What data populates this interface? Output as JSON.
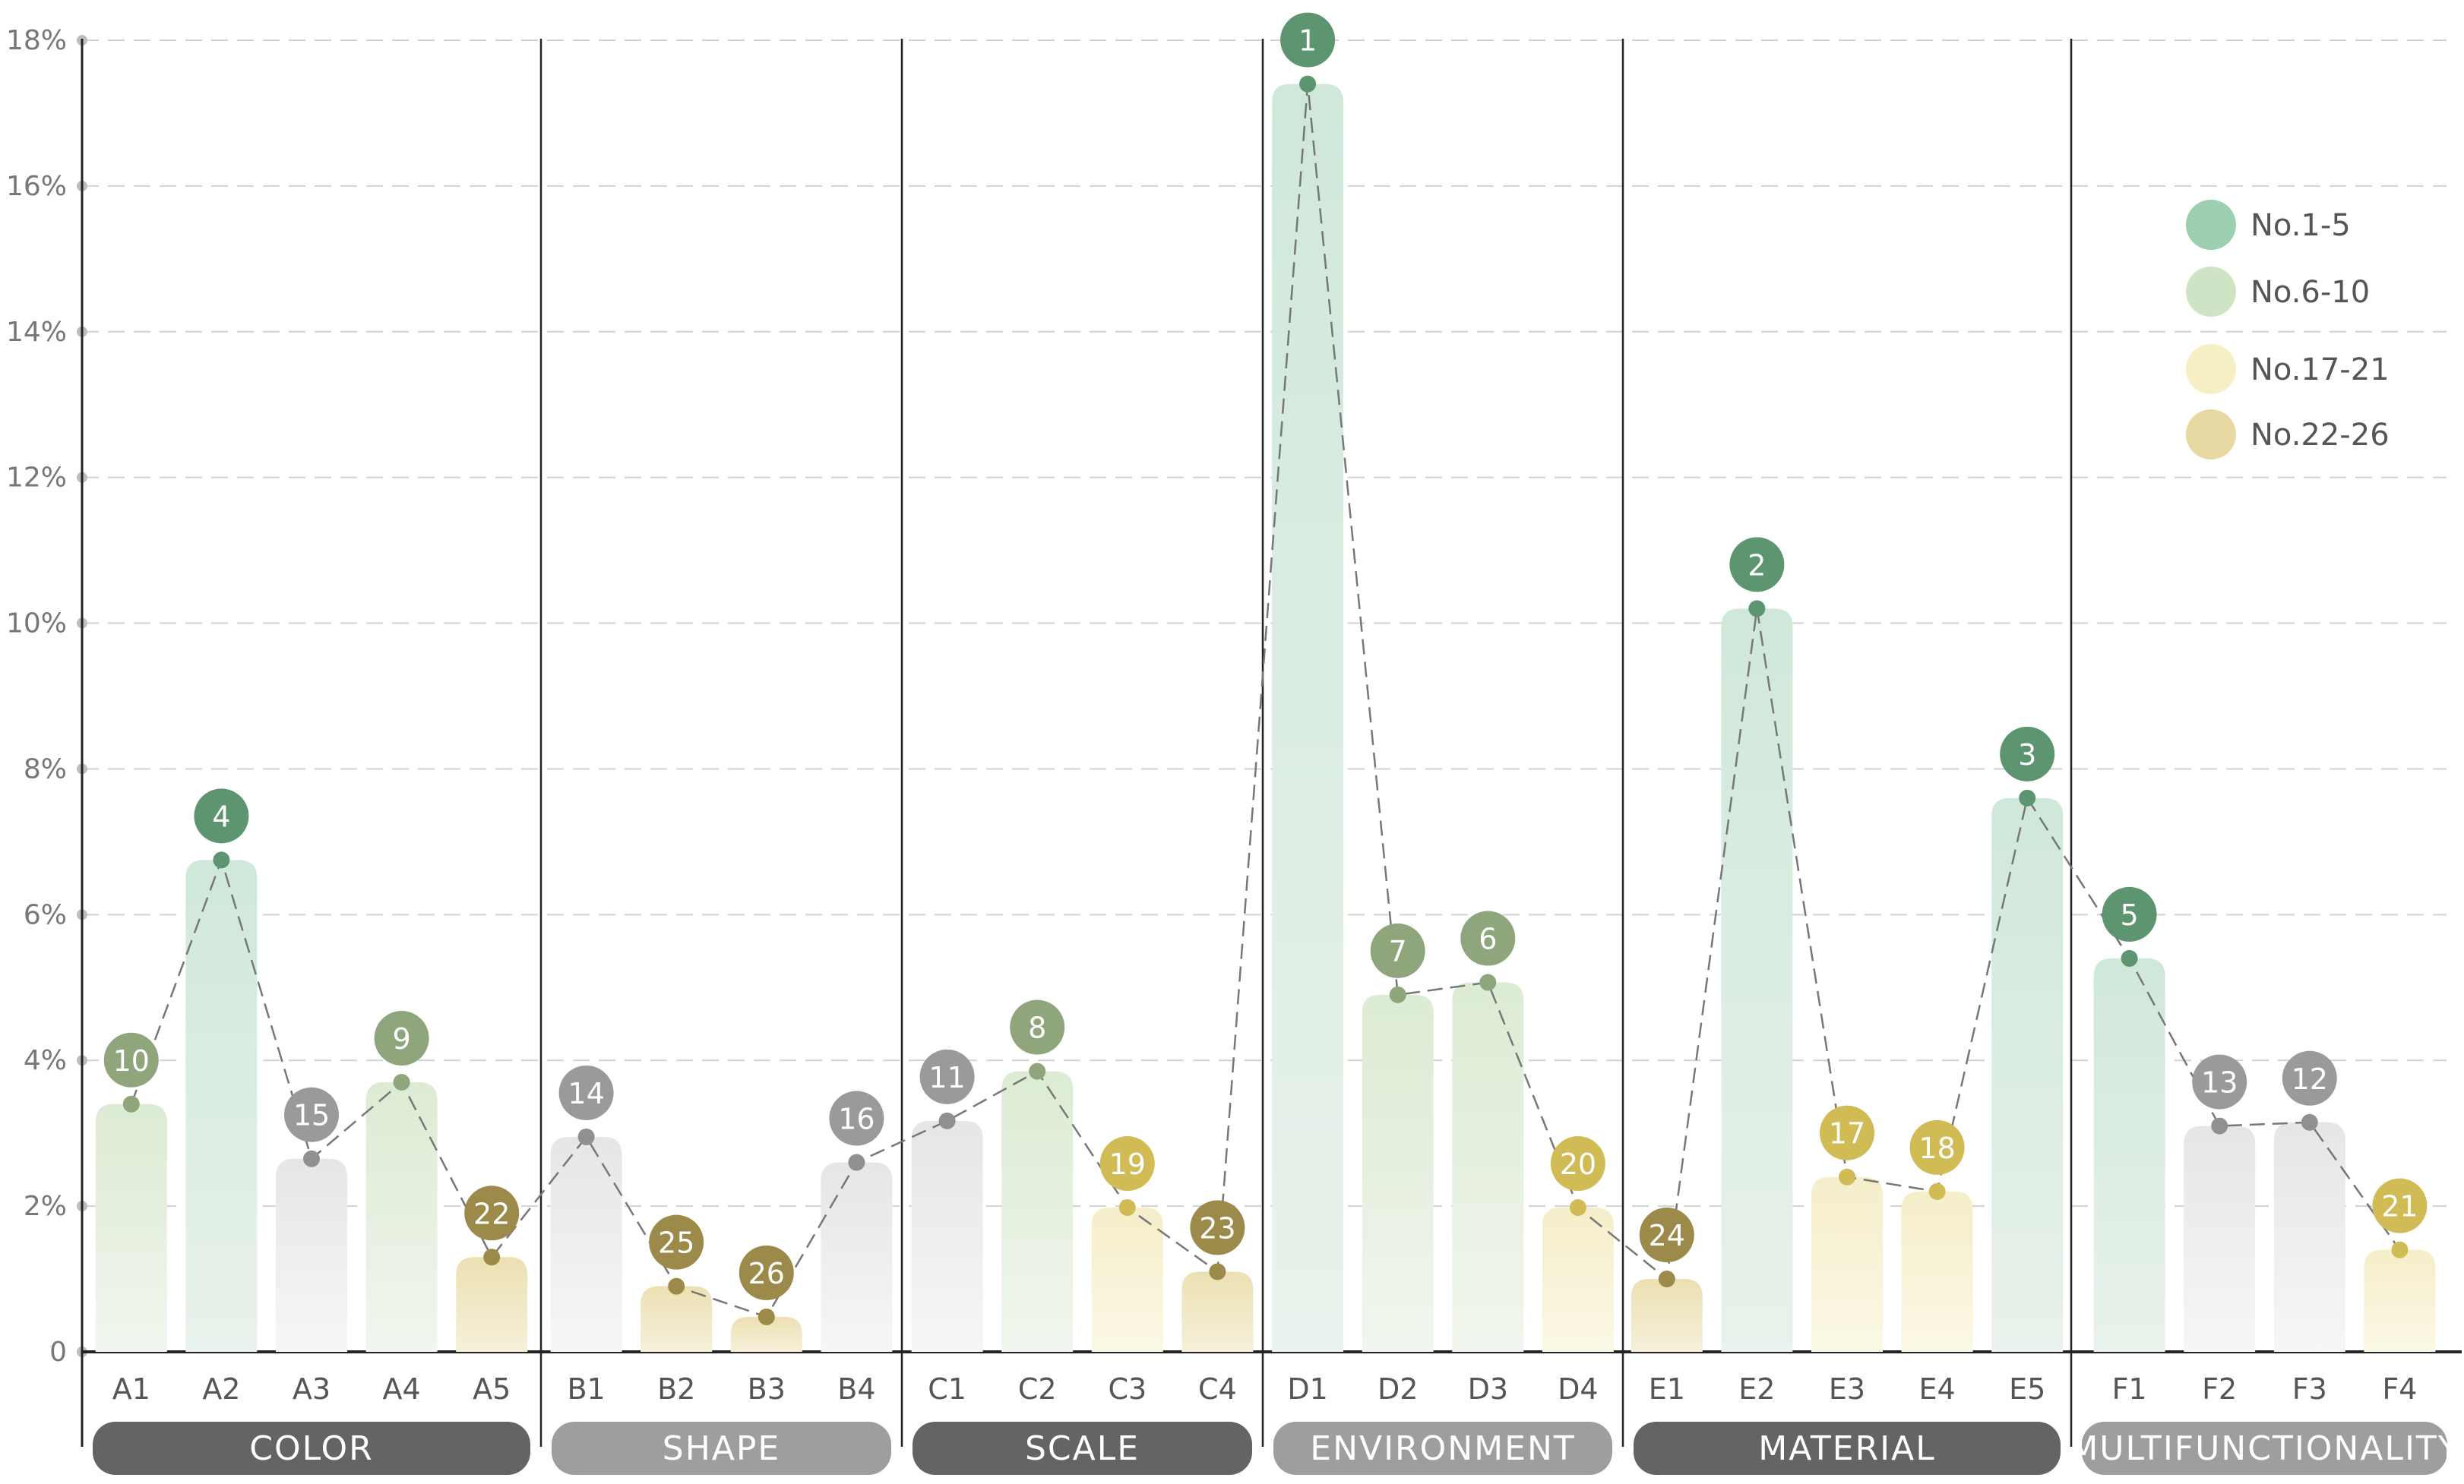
{
  "chart_data": {
    "type": "bar",
    "ylim": [
      0,
      18
    ],
    "yticks": [
      {
        "value": 0,
        "label": "0"
      },
      {
        "value": 2,
        "label": "2%"
      },
      {
        "value": 4,
        "label": "4%"
      },
      {
        "value": 6,
        "label": "6%"
      },
      {
        "value": 8,
        "label": "8%"
      },
      {
        "value": 10,
        "label": "10%"
      },
      {
        "value": 12,
        "label": "12%"
      },
      {
        "value": 14,
        "label": "14%"
      },
      {
        "value": 16,
        "label": "16%"
      },
      {
        "value": 18,
        "label": "18%"
      }
    ],
    "grid": true,
    "legend_position": "top-right",
    "legend": [
      {
        "label": "No.1-5",
        "color": "#9ccfb0"
      },
      {
        "label": "No.6-10",
        "color": "#cfe4c4"
      },
      {
        "label": "No.17-21",
        "color": "#f6efc6"
      },
      {
        "label": "No.22-26",
        "color": "#e8d9a3"
      }
    ],
    "groups": [
      {
        "name": "COLOR",
        "style": "dark",
        "items": [
          {
            "label": "A1",
            "value": 3.4,
            "rank": "10",
            "tier": "6-10"
          },
          {
            "label": "A2",
            "value": 6.75,
            "rank": "4",
            "tier": "1-5"
          },
          {
            "label": "A3",
            "value": 2.65,
            "rank": "15",
            "tier": "gray"
          },
          {
            "label": "A4",
            "value": 3.7,
            "rank": "9",
            "tier": "6-10"
          },
          {
            "label": "A5",
            "value": 1.3,
            "rank": "22",
            "tier": "22-26"
          }
        ]
      },
      {
        "name": "SHAPE",
        "style": "light",
        "items": [
          {
            "label": "B1",
            "value": 2.95,
            "rank": "14",
            "tier": "gray"
          },
          {
            "label": "B2",
            "value": 0.9,
            "rank": "25",
            "tier": "22-26"
          },
          {
            "label": "B3",
            "value": 0.48,
            "rank": "26",
            "tier": "22-26"
          },
          {
            "label": "B4",
            "value": 2.6,
            "rank": "16",
            "tier": "gray"
          }
        ]
      },
      {
        "name": "SCALE",
        "style": "dark",
        "items": [
          {
            "label": "C1",
            "value": 3.17,
            "rank": "11",
            "tier": "gray"
          },
          {
            "label": "C2",
            "value": 3.85,
            "rank": "8",
            "tier": "6-10"
          },
          {
            "label": "C3",
            "value": 1.98,
            "rank": "19",
            "tier": "17-21"
          },
          {
            "label": "C4",
            "value": 1.1,
            "rank": "23",
            "tier": "22-26"
          }
        ]
      },
      {
        "name": "ENVIRONMENT",
        "style": "light",
        "items": [
          {
            "label": "D1",
            "value": 17.4,
            "rank": "1",
            "tier": "1-5"
          },
          {
            "label": "D2",
            "value": 4.9,
            "rank": "7",
            "tier": "6-10"
          },
          {
            "label": "D3",
            "value": 5.07,
            "rank": "6",
            "tier": "6-10"
          },
          {
            "label": "D4",
            "value": 1.98,
            "rank": "20",
            "tier": "17-21"
          }
        ]
      },
      {
        "name": "MATERIAL",
        "style": "dark",
        "items": [
          {
            "label": "E1",
            "value": 1.0,
            "rank": "24",
            "tier": "22-26"
          },
          {
            "label": "E2",
            "value": 10.2,
            "rank": "2",
            "tier": "1-5"
          },
          {
            "label": "E3",
            "value": 2.4,
            "rank": "17",
            "tier": "17-21"
          },
          {
            "label": "E4",
            "value": 2.2,
            "rank": "18",
            "tier": "17-21"
          },
          {
            "label": "E5",
            "value": 7.6,
            "rank": "3",
            "tier": "1-5"
          }
        ]
      },
      {
        "name": "MULTIFUNCTIONALITY",
        "style": "light",
        "items": [
          {
            "label": "F1",
            "value": 5.4,
            "rank": "5",
            "tier": "1-5"
          },
          {
            "label": "F2",
            "value": 3.1,
            "rank": "13",
            "tier": "gray"
          },
          {
            "label": "F3",
            "value": 3.15,
            "rank": "12",
            "tier": "gray"
          },
          {
            "label": "F4",
            "value": 1.4,
            "rank": "21",
            "tier": "17-21"
          }
        ]
      }
    ],
    "colors": {
      "1-5": {
        "top": "#cfe8da",
        "bottom": "#e9f2ec",
        "badge": "#5c9570",
        "dot": "#5c9570"
      },
      "6-10": {
        "top": "#dcebd3",
        "bottom": "#f1f6ee",
        "badge": "#8fa67d",
        "dot": "#8fa67d"
      },
      "gray": {
        "top": "#e6e6e8",
        "bottom": "#f6f6f6",
        "badge": "#9a9a9a",
        "dot": "#909090"
      },
      "17-21": {
        "top": "#f5eec9",
        "bottom": "#fbf8e6",
        "badge": "#d1bb55",
        "dot": "#d1bb55"
      },
      "22-26": {
        "top": "#ece0b2",
        "bottom": "#f6f0da",
        "badge": "#9c8a4a",
        "dot": "#9c8a4a"
      },
      "group_dark": "#646464",
      "group_light": "#9e9e9e"
    }
  }
}
